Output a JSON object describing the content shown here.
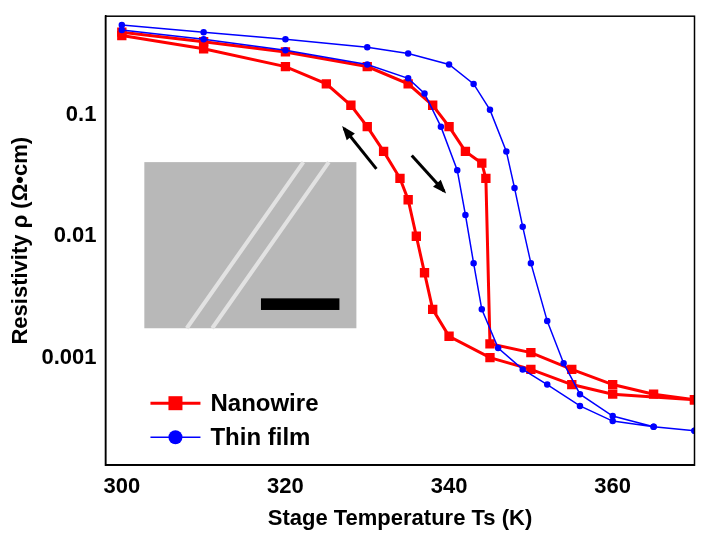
{
  "chart_data": {
    "type": "line",
    "x_label": "Stage Temperature Ts (K)",
    "y_label": "Resistivity ρ (Ω•cm)",
    "series": [
      {
        "name": "Nanowire",
        "color": "#ff0000",
        "marker": "square",
        "line_style": "solid",
        "x": [
          300,
          310,
          320,
          330,
          335,
          338,
          340,
          342,
          344,
          344.5,
          345,
          350,
          355,
          360,
          365,
          370,
          370,
          360,
          355,
          350,
          345,
          340,
          338,
          337,
          336,
          335,
          334,
          332,
          330,
          328,
          325,
          320,
          310,
          300
        ],
        "values": [
          0.48,
          0.4,
          0.33,
          0.25,
          0.18,
          0.12,
          0.08,
          0.05,
          0.04,
          0.03,
          0.0013,
          0.0011,
          0.0008,
          0.0006,
          0.0005,
          0.00045,
          0.00045,
          0.0005,
          0.0006,
          0.0008,
          0.001,
          0.0015,
          0.0025,
          0.005,
          0.01,
          0.02,
          0.03,
          0.05,
          0.08,
          0.12,
          0.18,
          0.25,
          0.35,
          0.45
        ]
      },
      {
        "name": "Thin film",
        "color": "#0000ff",
        "marker": "circle",
        "line_style": "solid",
        "x": [
          300,
          310,
          320,
          330,
          335,
          340,
          343,
          345,
          347,
          348,
          349,
          350,
          352,
          354,
          356,
          360,
          365,
          370,
          370,
          365,
          360,
          356,
          352,
          349,
          346,
          344,
          343,
          342,
          341,
          339,
          337,
          335,
          330,
          320,
          310,
          300
        ],
        "values": [
          0.55,
          0.48,
          0.42,
          0.36,
          0.32,
          0.26,
          0.18,
          0.11,
          0.05,
          0.025,
          0.012,
          0.006,
          0.002,
          0.0009,
          0.0005,
          0.00033,
          0.00027,
          0.00025,
          0.00025,
          0.00027,
          0.0003,
          0.0004,
          0.0006,
          0.0008,
          0.0012,
          0.0025,
          0.006,
          0.015,
          0.035,
          0.08,
          0.15,
          0.2,
          0.26,
          0.34,
          0.42,
          0.5
        ]
      }
    ],
    "xlim": [
      298,
      370
    ],
    "xticks": [
      300,
      320,
      340,
      360
    ],
    "ylim": [
      0.00013,
      0.65
    ],
    "yticks": [
      0.001,
      0.01,
      0.1
    ],
    "log": "y",
    "grid": false,
    "legend": "lower left"
  }
}
